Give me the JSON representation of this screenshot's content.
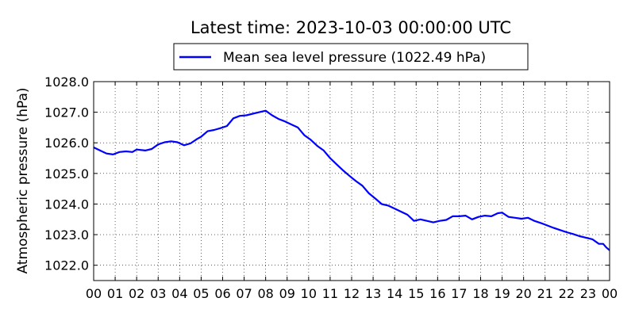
{
  "chart_data": {
    "type": "line",
    "title": "Latest time: 2023-10-03 00:00:00 UTC",
    "xlabel": "",
    "ylabel": "Atmospheric pressure (hPa)",
    "xlim": [
      0,
      24
    ],
    "ylim": [
      1021.5,
      1028.0
    ],
    "x_ticks": [
      0,
      1,
      2,
      3,
      4,
      5,
      6,
      7,
      8,
      9,
      10,
      11,
      12,
      13,
      14,
      15,
      16,
      17,
      18,
      19,
      20,
      21,
      22,
      23,
      24
    ],
    "x_tick_labels": [
      "00",
      "01",
      "02",
      "03",
      "04",
      "05",
      "06",
      "07",
      "08",
      "09",
      "10",
      "11",
      "12",
      "13",
      "14",
      "15",
      "16",
      "17",
      "18",
      "19",
      "20",
      "21",
      "22",
      "23",
      "00"
    ],
    "y_ticks": [
      1022.0,
      1023.0,
      1024.0,
      1025.0,
      1026.0,
      1027.0,
      1028.0
    ],
    "y_tick_labels": [
      "1022.0",
      "1023.0",
      "1024.0",
      "1025.0",
      "1026.0",
      "1027.0",
      "1028.0"
    ],
    "grid": true,
    "legend_position": "top-center",
    "series": [
      {
        "name": "Mean sea level pressure (1022.49 hPa)",
        "color": "#0000ff",
        "x": [
          0,
          0.3,
          0.6,
          0.9,
          1.2,
          1.5,
          1.8,
          2.0,
          2.4,
          2.7,
          3.0,
          3.3,
          3.6,
          3.9,
          4.2,
          4.5,
          4.8,
          5.0,
          5.3,
          5.6,
          5.9,
          6.2,
          6.5,
          6.8,
          7.1,
          7.4,
          7.7,
          8.0,
          8.3,
          8.6,
          8.9,
          9.2,
          9.5,
          9.8,
          10.1,
          10.4,
          10.7,
          11.0,
          11.3,
          11.6,
          11.9,
          12.2,
          12.5,
          12.8,
          13.1,
          13.4,
          13.7,
          14.0,
          14.3,
          14.6,
          14.9,
          15.2,
          15.5,
          15.8,
          16.1,
          16.4,
          16.7,
          17.0,
          17.3,
          17.6,
          17.9,
          18.2,
          18.5,
          18.8,
          19.0,
          19.3,
          19.6,
          19.9,
          20.2,
          20.5,
          20.8,
          21.1,
          21.4,
          21.7,
          22.0,
          22.3,
          22.6,
          22.9,
          23.2,
          23.5,
          23.7,
          23.85,
          24.0
        ],
        "values": [
          1025.85,
          1025.75,
          1025.65,
          1025.62,
          1025.7,
          1025.72,
          1025.7,
          1025.78,
          1025.75,
          1025.8,
          1025.95,
          1026.02,
          1026.05,
          1026.02,
          1025.92,
          1025.98,
          1026.12,
          1026.2,
          1026.38,
          1026.42,
          1026.48,
          1026.55,
          1026.8,
          1026.88,
          1026.9,
          1026.95,
          1027.0,
          1027.05,
          1026.9,
          1026.78,
          1026.7,
          1026.6,
          1026.5,
          1026.25,
          1026.1,
          1025.9,
          1025.75,
          1025.5,
          1025.3,
          1025.1,
          1024.92,
          1024.75,
          1024.6,
          1024.35,
          1024.18,
          1024.0,
          1023.95,
          1023.85,
          1023.75,
          1023.65,
          1023.45,
          1023.5,
          1023.45,
          1023.4,
          1023.45,
          1023.48,
          1023.6,
          1023.6,
          1023.62,
          1023.5,
          1023.58,
          1023.62,
          1023.6,
          1023.7,
          1023.72,
          1023.58,
          1023.55,
          1023.52,
          1023.55,
          1023.45,
          1023.38,
          1023.3,
          1023.22,
          1023.15,
          1023.08,
          1023.02,
          1022.95,
          1022.9,
          1022.85,
          1022.7,
          1022.7,
          1022.58,
          1022.49
        ]
      }
    ]
  }
}
